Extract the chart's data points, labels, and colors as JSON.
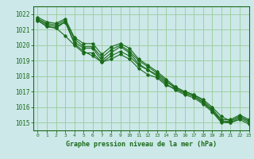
{
  "title": "Graphe pression niveau de la mer (hPa)",
  "bg_color": "#cce8e8",
  "grid_color": "#99cc99",
  "line_color": "#1a6b1a",
  "text_color": "#1a6b1a",
  "xlim": [
    -0.5,
    23
  ],
  "ylim": [
    1014.5,
    1022.5
  ],
  "yticks": [
    1015,
    1016,
    1017,
    1018,
    1019,
    1020,
    1021,
    1022
  ],
  "xticks": [
    0,
    1,
    2,
    3,
    4,
    5,
    6,
    7,
    8,
    9,
    10,
    11,
    12,
    13,
    14,
    15,
    16,
    17,
    18,
    19,
    20,
    21,
    22,
    23
  ],
  "series": [
    [
      1021.6,
      1021.2,
      1021.1,
      1020.6,
      1020.0,
      1019.5,
      1019.5,
      1018.9,
      1019.1,
      1019.4,
      1019.1,
      1018.5,
      1018.1,
      1017.9,
      1017.4,
      1017.2,
      1016.9,
      1016.7,
      1016.3,
      1015.8,
      1015.1,
      1015.0,
      1015.2,
      1014.9
    ],
    [
      1021.6,
      1021.2,
      1021.1,
      1021.5,
      1020.1,
      1019.6,
      1019.3,
      1018.9,
      1019.3,
      1019.6,
      1019.3,
      1018.7,
      1018.4,
      1018.1,
      1017.6,
      1017.3,
      1017.0,
      1016.8,
      1016.5,
      1016.0,
      1015.4,
      1015.1,
      1015.4,
      1015.1
    ],
    [
      1021.7,
      1021.3,
      1021.2,
      1021.5,
      1020.2,
      1019.8,
      1019.8,
      1019.0,
      1019.5,
      1019.9,
      1019.5,
      1018.8,
      1018.4,
      1018.0,
      1017.5,
      1017.1,
      1016.8,
      1016.6,
      1016.2,
      1015.7,
      1015.0,
      1015.0,
      1015.3,
      1015.0
    ],
    [
      1021.7,
      1021.4,
      1021.3,
      1021.6,
      1020.4,
      1019.9,
      1019.9,
      1019.2,
      1019.7,
      1020.0,
      1019.6,
      1019.0,
      1018.6,
      1018.2,
      1017.7,
      1017.2,
      1016.9,
      1016.7,
      1016.3,
      1015.8,
      1015.1,
      1015.1,
      1015.4,
      1015.1
    ],
    [
      1021.8,
      1021.5,
      1021.4,
      1021.7,
      1020.5,
      1020.1,
      1020.1,
      1019.4,
      1019.9,
      1020.1,
      1019.8,
      1019.1,
      1018.7,
      1018.3,
      1017.8,
      1017.3,
      1017.0,
      1016.8,
      1016.4,
      1015.9,
      1015.2,
      1015.2,
      1015.5,
      1015.2
    ]
  ]
}
